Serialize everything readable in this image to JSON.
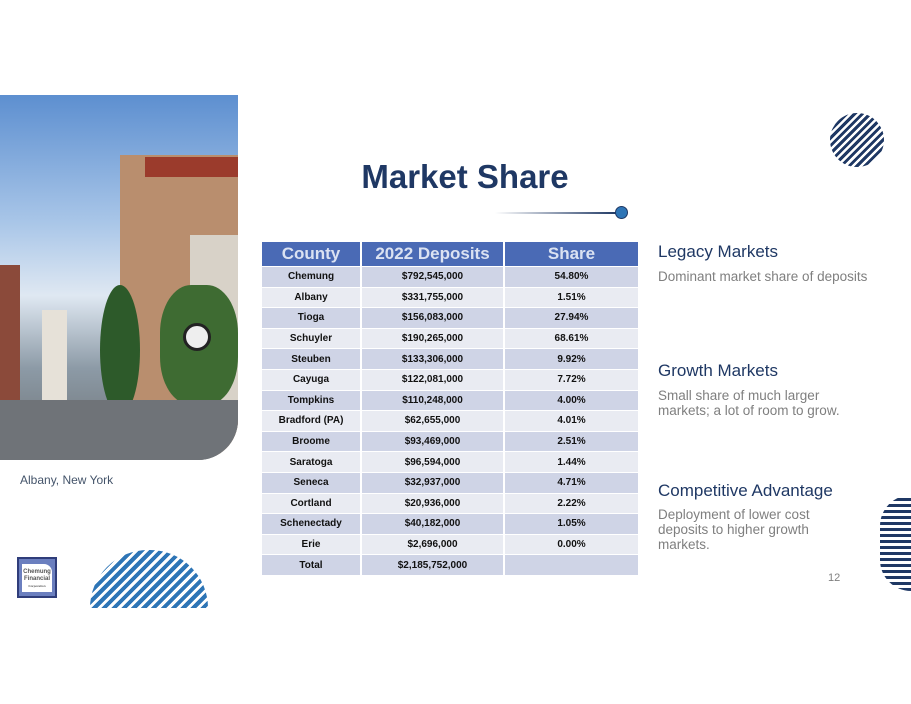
{
  "title": "Market Share",
  "photo": {
    "caption": "Albany, New York"
  },
  "logo": {
    "line1": "Chemung",
    "line2": "Financial",
    "line3": "Corporation"
  },
  "table": {
    "headers": [
      "County",
      "2022 Deposits",
      "Share"
    ],
    "rows": [
      [
        "Chemung",
        "$792,545,000",
        "54.80%"
      ],
      [
        "Albany",
        "$331,755,000",
        "1.51%"
      ],
      [
        "Tioga",
        "$156,083,000",
        "27.94%"
      ],
      [
        "Schuyler",
        "$190,265,000",
        "68.61%"
      ],
      [
        "Steuben",
        "$133,306,000",
        "9.92%"
      ],
      [
        "Cayuga",
        "$122,081,000",
        "7.72%"
      ],
      [
        "Tompkins",
        "$110,248,000",
        "4.00%"
      ],
      [
        "Bradford (PA)",
        "$62,655,000",
        "4.01%"
      ],
      [
        "Broome",
        "$93,469,000",
        "2.51%"
      ],
      [
        "Saratoga",
        "$96,594,000",
        "1.44%"
      ],
      [
        "Seneca",
        "$32,937,000",
        "4.71%"
      ],
      [
        "Cortland",
        "$20,936,000",
        "2.22%"
      ],
      [
        "Schenectady",
        "$40,182,000",
        "1.05%"
      ],
      [
        "Erie",
        "$2,696,000",
        "0.00%"
      ],
      [
        "Total",
        "$2,185,752,000",
        ""
      ]
    ]
  },
  "sections": [
    {
      "heading": "Legacy Markets",
      "text": "Dominant market share of deposits"
    },
    {
      "heading": "Growth Markets",
      "text": "Small share of much larger markets; a lot of room to grow."
    },
    {
      "heading": "Competitive Advantage",
      "text": "Deployment of lower cost deposits to higher growth markets."
    }
  ],
  "page_number": "12",
  "colors": {
    "title": "#1f3864",
    "header": "#4a6ab5",
    "accent": "#2e75b6"
  }
}
